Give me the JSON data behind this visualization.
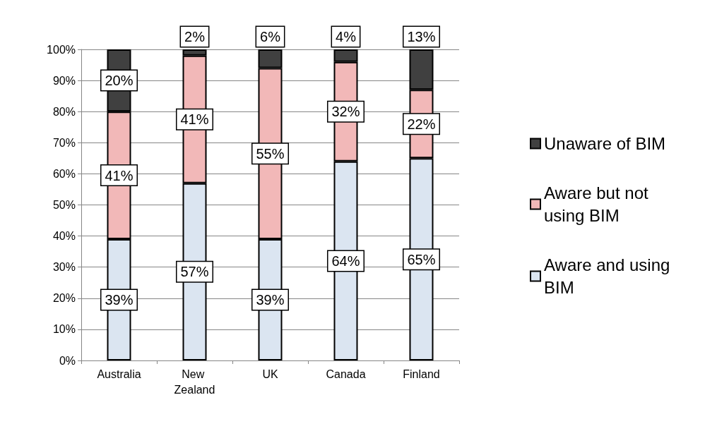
{
  "chart_data": {
    "type": "bar",
    "stacked": true,
    "categories": [
      "Australia",
      "New Zealand",
      "UK",
      "Canada",
      "Finland"
    ],
    "series": [
      {
        "name": "Aware and using BIM",
        "color": "#dbe5f1",
        "values": [
          39,
          57,
          39,
          64,
          65
        ],
        "value_labels": [
          "39%",
          "57%",
          "39%",
          "64%",
          "65%"
        ]
      },
      {
        "name": "Aware but not using BIM",
        "color": "#f2b8b8",
        "values": [
          41,
          41,
          55,
          32,
          22
        ],
        "value_labels": [
          "41%",
          "41%",
          "55%",
          "32%",
          "22%"
        ]
      },
      {
        "name": "Unaware of BIM",
        "color": "#404040",
        "values": [
          20,
          2,
          6,
          4,
          13
        ],
        "value_labels": [
          "20%",
          "2%",
          "6%",
          "4%",
          "13%"
        ]
      }
    ],
    "ylim": [
      0,
      100
    ],
    "yticks": [
      {
        "value": 0,
        "label": "0%"
      },
      {
        "value": 10,
        "label": "10%"
      },
      {
        "value": 20,
        "label": "20%"
      },
      {
        "value": 30,
        "label": "30%"
      },
      {
        "value": 40,
        "label": "40%"
      },
      {
        "value": 50,
        "label": "50%"
      },
      {
        "value": 60,
        "label": "60%"
      },
      {
        "value": 70,
        "label": "70%"
      },
      {
        "value": 80,
        "label": "80%"
      },
      {
        "value": 90,
        "label": "90%"
      },
      {
        "value": 100,
        "label": "100%"
      }
    ],
    "grid": "y",
    "legend": "right"
  }
}
